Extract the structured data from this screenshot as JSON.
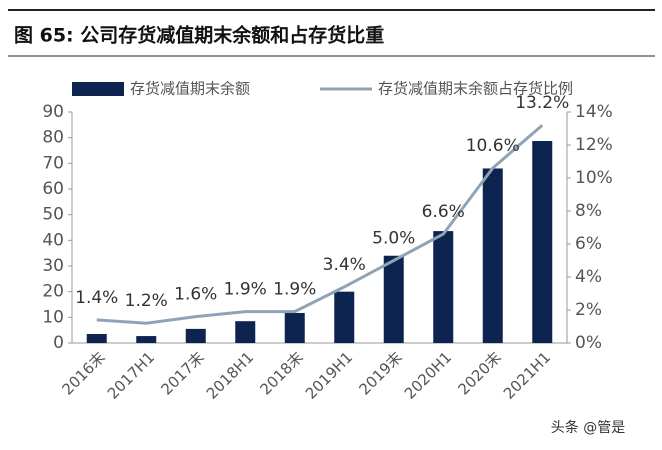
{
  "chart_data": {
    "type": "bar_line",
    "title": "图 65:  公司存货减值期末余额和占存货比重",
    "categories": [
      "2016末",
      "2017H1",
      "2017末",
      "2018H1",
      "2018末",
      "2019H1",
      "2019末",
      "2020H1",
      "2020末",
      "2021H1"
    ],
    "series": [
      {
        "name": "存货减值期末余额",
        "type": "bar",
        "color": "#0d2451",
        "values": [
          3.5,
          2.7,
          5.5,
          8.5,
          11.7,
          20,
          34,
          43.6,
          68,
          78.7
        ]
      },
      {
        "name": "存货减值期末余额占存货比例",
        "type": "line",
        "axis": "y2",
        "color": "#8fa3b7",
        "values": [
          1.4,
          1.2,
          1.6,
          1.9,
          1.9,
          3.4,
          5.0,
          6.6,
          10.6,
          13.2
        ],
        "value_labels": [
          "1.4%",
          "1.2%",
          "1.6%",
          "1.9%",
          "1.9%",
          "3.4%",
          "5.0%",
          "6.6%",
          "10.6%",
          "13.2%"
        ]
      }
    ],
    "ylim": [
      0,
      90
    ],
    "yticks": [
      0,
      10,
      20,
      30,
      40,
      50,
      60,
      70,
      80,
      90
    ],
    "y2lim": [
      0,
      14
    ],
    "y2ticks": [
      {
        "value": 0,
        "label": "0%"
      },
      {
        "value": 2,
        "label": "2%"
      },
      {
        "value": 4,
        "label": "4%"
      },
      {
        "value": 6,
        "label": "6%"
      },
      {
        "value": 8,
        "label": "8%"
      },
      {
        "value": 10,
        "label": "10%"
      },
      {
        "value": 12,
        "label": "12%"
      },
      {
        "value": 14,
        "label": "14%"
      }
    ],
    "watermark": "头条 @管是"
  }
}
